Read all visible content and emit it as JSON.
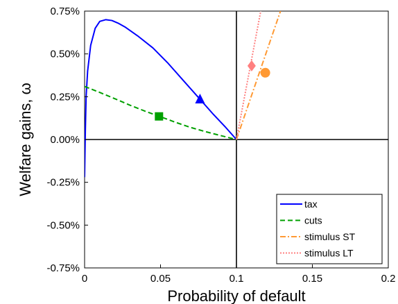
{
  "chart_data": {
    "type": "line",
    "title": "",
    "xlabel": "Probability of default",
    "ylabel": "Welfare gains, ω",
    "xlim": [
      0,
      0.2
    ],
    "ylim": [
      -0.75,
      0.75
    ],
    "x_ticks": [
      {
        "value": 0,
        "label": "0"
      },
      {
        "value": 0.05,
        "label": "0.05"
      },
      {
        "value": 0.1,
        "label": "0.1"
      },
      {
        "value": 0.15,
        "label": "0.15"
      },
      {
        "value": 0.2,
        "label": "0.2"
      }
    ],
    "y_ticks": [
      {
        "value": 0.75,
        "label": "0.75%"
      },
      {
        "value": 0.5,
        "label": "0.50%"
      },
      {
        "value": 0.25,
        "label": "0.25%"
      },
      {
        "value": 0,
        "label": "0.00%"
      },
      {
        "value": -0.25,
        "label": "-0.25%"
      },
      {
        "value": -0.5,
        "label": "-0.50%"
      },
      {
        "value": -0.75,
        "label": "-0.75%"
      }
    ],
    "grid": false,
    "reference_lines": {
      "x": 0.1,
      "y": 0
    },
    "legend_position": "bottom-right",
    "series": [
      {
        "name": "tax",
        "color": "#0000ff",
        "dash": "solid",
        "points": [
          [
            0,
            -0.22
          ],
          [
            0.0005,
            0.05
          ],
          [
            0.001,
            0.25
          ],
          [
            0.002,
            0.4
          ],
          [
            0.004,
            0.55
          ],
          [
            0.007,
            0.65
          ],
          [
            0.01,
            0.69
          ],
          [
            0.014,
            0.7
          ],
          [
            0.018,
            0.695
          ],
          [
            0.022,
            0.68
          ],
          [
            0.027,
            0.655
          ],
          [
            0.035,
            0.605
          ],
          [
            0.045,
            0.535
          ],
          [
            0.055,
            0.445
          ],
          [
            0.065,
            0.345
          ],
          [
            0.075,
            0.245
          ],
          [
            0.085,
            0.145
          ],
          [
            0.093,
            0.07
          ],
          [
            0.1,
            0.0
          ]
        ],
        "marker": {
          "shape": "triangle",
          "x": 0.076,
          "y": 0.235
        }
      },
      {
        "name": "cuts",
        "color": "#00a000",
        "dash": "dashed",
        "points": [
          [
            0,
            0.31
          ],
          [
            0.01,
            0.275
          ],
          [
            0.02,
            0.238
          ],
          [
            0.03,
            0.2
          ],
          [
            0.04,
            0.165
          ],
          [
            0.05,
            0.133
          ],
          [
            0.06,
            0.1
          ],
          [
            0.07,
            0.07
          ],
          [
            0.08,
            0.045
          ],
          [
            0.09,
            0.022
          ],
          [
            0.1,
            0.0
          ]
        ],
        "marker": {
          "shape": "square",
          "x": 0.049,
          "y": 0.135
        }
      },
      {
        "name": "stimulus ST",
        "color": "#ff9933",
        "dash": "dashdot",
        "points": [
          [
            0.1,
            0.0
          ],
          [
            0.129,
            0.75
          ]
        ],
        "marker": {
          "shape": "circle",
          "x": 0.119,
          "y": 0.39
        }
      },
      {
        "name": "stimulus LT",
        "color": "#ff8080",
        "dash": "dotted",
        "points": [
          [
            0.1,
            0.0
          ],
          [
            0.116,
            0.75
          ]
        ],
        "marker": {
          "shape": "diamond",
          "x": 0.11,
          "y": 0.43
        }
      }
    ]
  }
}
